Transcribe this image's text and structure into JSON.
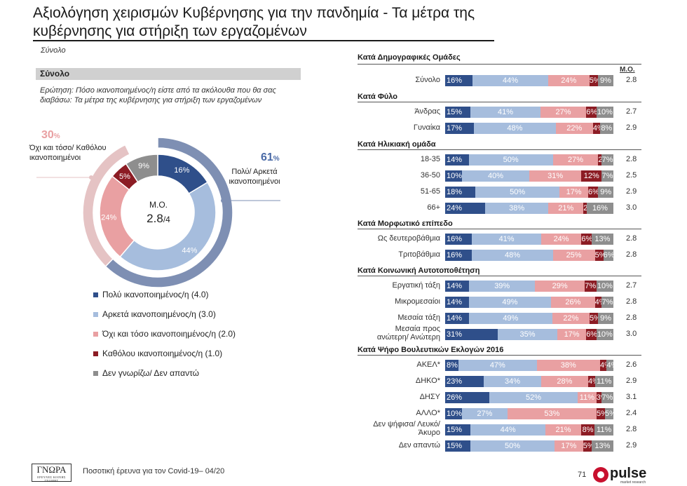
{
  "header": {
    "title_line1": "Αξιολόγηση χειρισμών Κυβέρνησης για την πανδημία - Τα μέτρα της",
    "title_line2": "κυβέρνησης για στήριξη των εργαζομένων",
    "subtitle": "Σύνολο"
  },
  "left_panel": {
    "head": "Σύνολο",
    "question": "Ερώτηση: Πόσο ικανοποιημένος/η είστε από τα ακόλουθα που θα σας διαβάσω: Τα μέτρα της κυβέρνησης για στήριξη των εργαζομένων",
    "positive_pct": "61",
    "positive_label": "Πολύ/ Αρκετά ικανοποιημένοι",
    "negative_pct": "30",
    "negative_label": "Όχι και τόσο/ Καθόλου ικανοποιημένοι",
    "pct_unit": "%",
    "center_label": "Μ.Ο.",
    "center_value": "2.8",
    "center_suffix": "/4"
  },
  "legend": [
    {
      "label": "Πολύ ικανοποιημένος/η (4.0)",
      "color": "#2f4f8a"
    },
    {
      "label": "Αρκετά ικανοποιημένος/η (3.0)",
      "color": "#a6bddd"
    },
    {
      "label": "Όχι και τόσο ικανοποιημένος/η (2.0)",
      "color": "#e9a0a2"
    },
    {
      "label": "Καθόλου ικανοποιημένος/η (1.0)",
      "color": "#8c1c24"
    },
    {
      "label": "Δεν γνωρίζω/ Δεν απαντώ",
      "color": "#8e8e8e"
    }
  ],
  "right_panel": {
    "head": "Κατά Δημογραφικές Ομάδες",
    "mo_head": "Μ.Ο."
  },
  "footer": {
    "logo_text": "ΓΝΩΡΑ",
    "logo_small": "ΕΡΕΥΝΕΣ ΚΟΙΝΗΣ ΓΝΩΜΗΣ",
    "text": "Ποσοτική έρευνα για τον Covid-19– 04/20",
    "page": "71",
    "brand": "pulse",
    "brand_small": "market research"
  },
  "chart_data": [
    {
      "type": "pie",
      "series": [
        {
          "values": [
            16,
            44,
            24,
            5,
            9
          ]
        }
      ],
      "categories": [
        "Πολύ ικανοποιημένος/η (4.0)",
        "Αρκετά ικανοποιημένος/η (3.0)",
        "Όχι και τόσο ικανοποιημένος/η (2.0)",
        "Καθόλου ικανοποιημένος/η (1.0)",
        "Δεν γνωρίζω/ Δεν απαντώ"
      ],
      "data_labels": [
        "16%",
        "44%",
        "24%",
        "5%",
        "9%"
      ],
      "outer_ring": {
        "positive": 61,
        "negative": 30
      }
    },
    {
      "type": "bar",
      "orientation": "horizontal",
      "stacked": true,
      "series_colors": [
        "#2f4f8a",
        "#a6bddd",
        "#e9a0a2",
        "#8c1c24",
        "#8e8e8e"
      ],
      "groups": [
        {
          "name": "Κατά Δημογραφικές Ομάδες",
          "rows": [
            {
              "label": "Σύνολο",
              "values": [
                16,
                44,
                24,
                5,
                9
              ],
              "mo": "2.8"
            }
          ]
        },
        {
          "name": "Κατά Φύλο",
          "rows": [
            {
              "label": "Άνδρας",
              "values": [
                15,
                41,
                27,
                6,
                10
              ],
              "mo": "2.7"
            },
            {
              "label": "Γυναίκα",
              "values": [
                17,
                48,
                22,
                4,
                8
              ],
              "mo": "2.9"
            }
          ]
        },
        {
          "name": "Κατά Ηλικιακή ομάδα",
          "rows": [
            {
              "label": "18-35",
              "values": [
                14,
                50,
                27,
                2,
                7
              ],
              "mo": "2.8"
            },
            {
              "label": "36-50",
              "values": [
                10,
                40,
                31,
                12,
                7
              ],
              "mo": "2.5"
            },
            {
              "label": "51-65",
              "values": [
                18,
                50,
                17,
                6,
                9
              ],
              "mo": "2.9"
            },
            {
              "label": "66+",
              "values": [
                24,
                38,
                21,
                2,
                16
              ],
              "mo": "3.0"
            }
          ]
        },
        {
          "name": "Κατά Μορφωτικό επίπεδο",
          "rows": [
            {
              "label": "Ως δευτεροβάθμια",
              "values": [
                16,
                41,
                24,
                6,
                13
              ],
              "mo": "2.8"
            },
            {
              "label": "Τριτοβάθμια",
              "values": [
                16,
                48,
                25,
                5,
                6
              ],
              "mo": "2.8"
            }
          ]
        },
        {
          "name": "Κατά Κοινωνική Αυτοτοποθέτηση",
          "rows": [
            {
              "label": "Εργατική τάξη",
              "values": [
                14,
                39,
                29,
                7,
                10
              ],
              "mo": "2.7"
            },
            {
              "label": "Μικρομεσαίοι",
              "values": [
                14,
                49,
                26,
                4,
                7
              ],
              "mo": "2.8"
            },
            {
              "label": "Μεσαία τάξη",
              "values": [
                14,
                49,
                22,
                5,
                9
              ],
              "mo": "2.8"
            },
            {
              "label": "Μεσαία προς ανώτερη/ Ανώτερη",
              "values": [
                31,
                35,
                17,
                6,
                10
              ],
              "mo": "3.0"
            }
          ]
        },
        {
          "name": "Κατά Ψήφο Βουλευτικών Εκλογών 2016",
          "rows": [
            {
              "label": "ΑΚΕΛ*",
              "values": [
                8,
                47,
                38,
                4,
                4
              ],
              "mo": "2.6"
            },
            {
              "label": "ΔΗΚΟ*",
              "values": [
                23,
                34,
                28,
                4,
                11
              ],
              "mo": "2.9"
            },
            {
              "label": "ΔΗΣΥ",
              "values": [
                26,
                52,
                11,
                3,
                7
              ],
              "mo": "3.1"
            },
            {
              "label": "ΑΛΛΟ*",
              "values": [
                10,
                27,
                53,
                5,
                5
              ],
              "mo": "2.4"
            },
            {
              "label": "Δεν ψήφισα/ Λευκό/ Άκυρο",
              "values": [
                15,
                44,
                21,
                8,
                11
              ],
              "mo": "2.8"
            },
            {
              "label": "Δεν απαντώ",
              "values": [
                15,
                50,
                17,
                5,
                13
              ],
              "mo": "2.9"
            }
          ]
        }
      ]
    }
  ]
}
